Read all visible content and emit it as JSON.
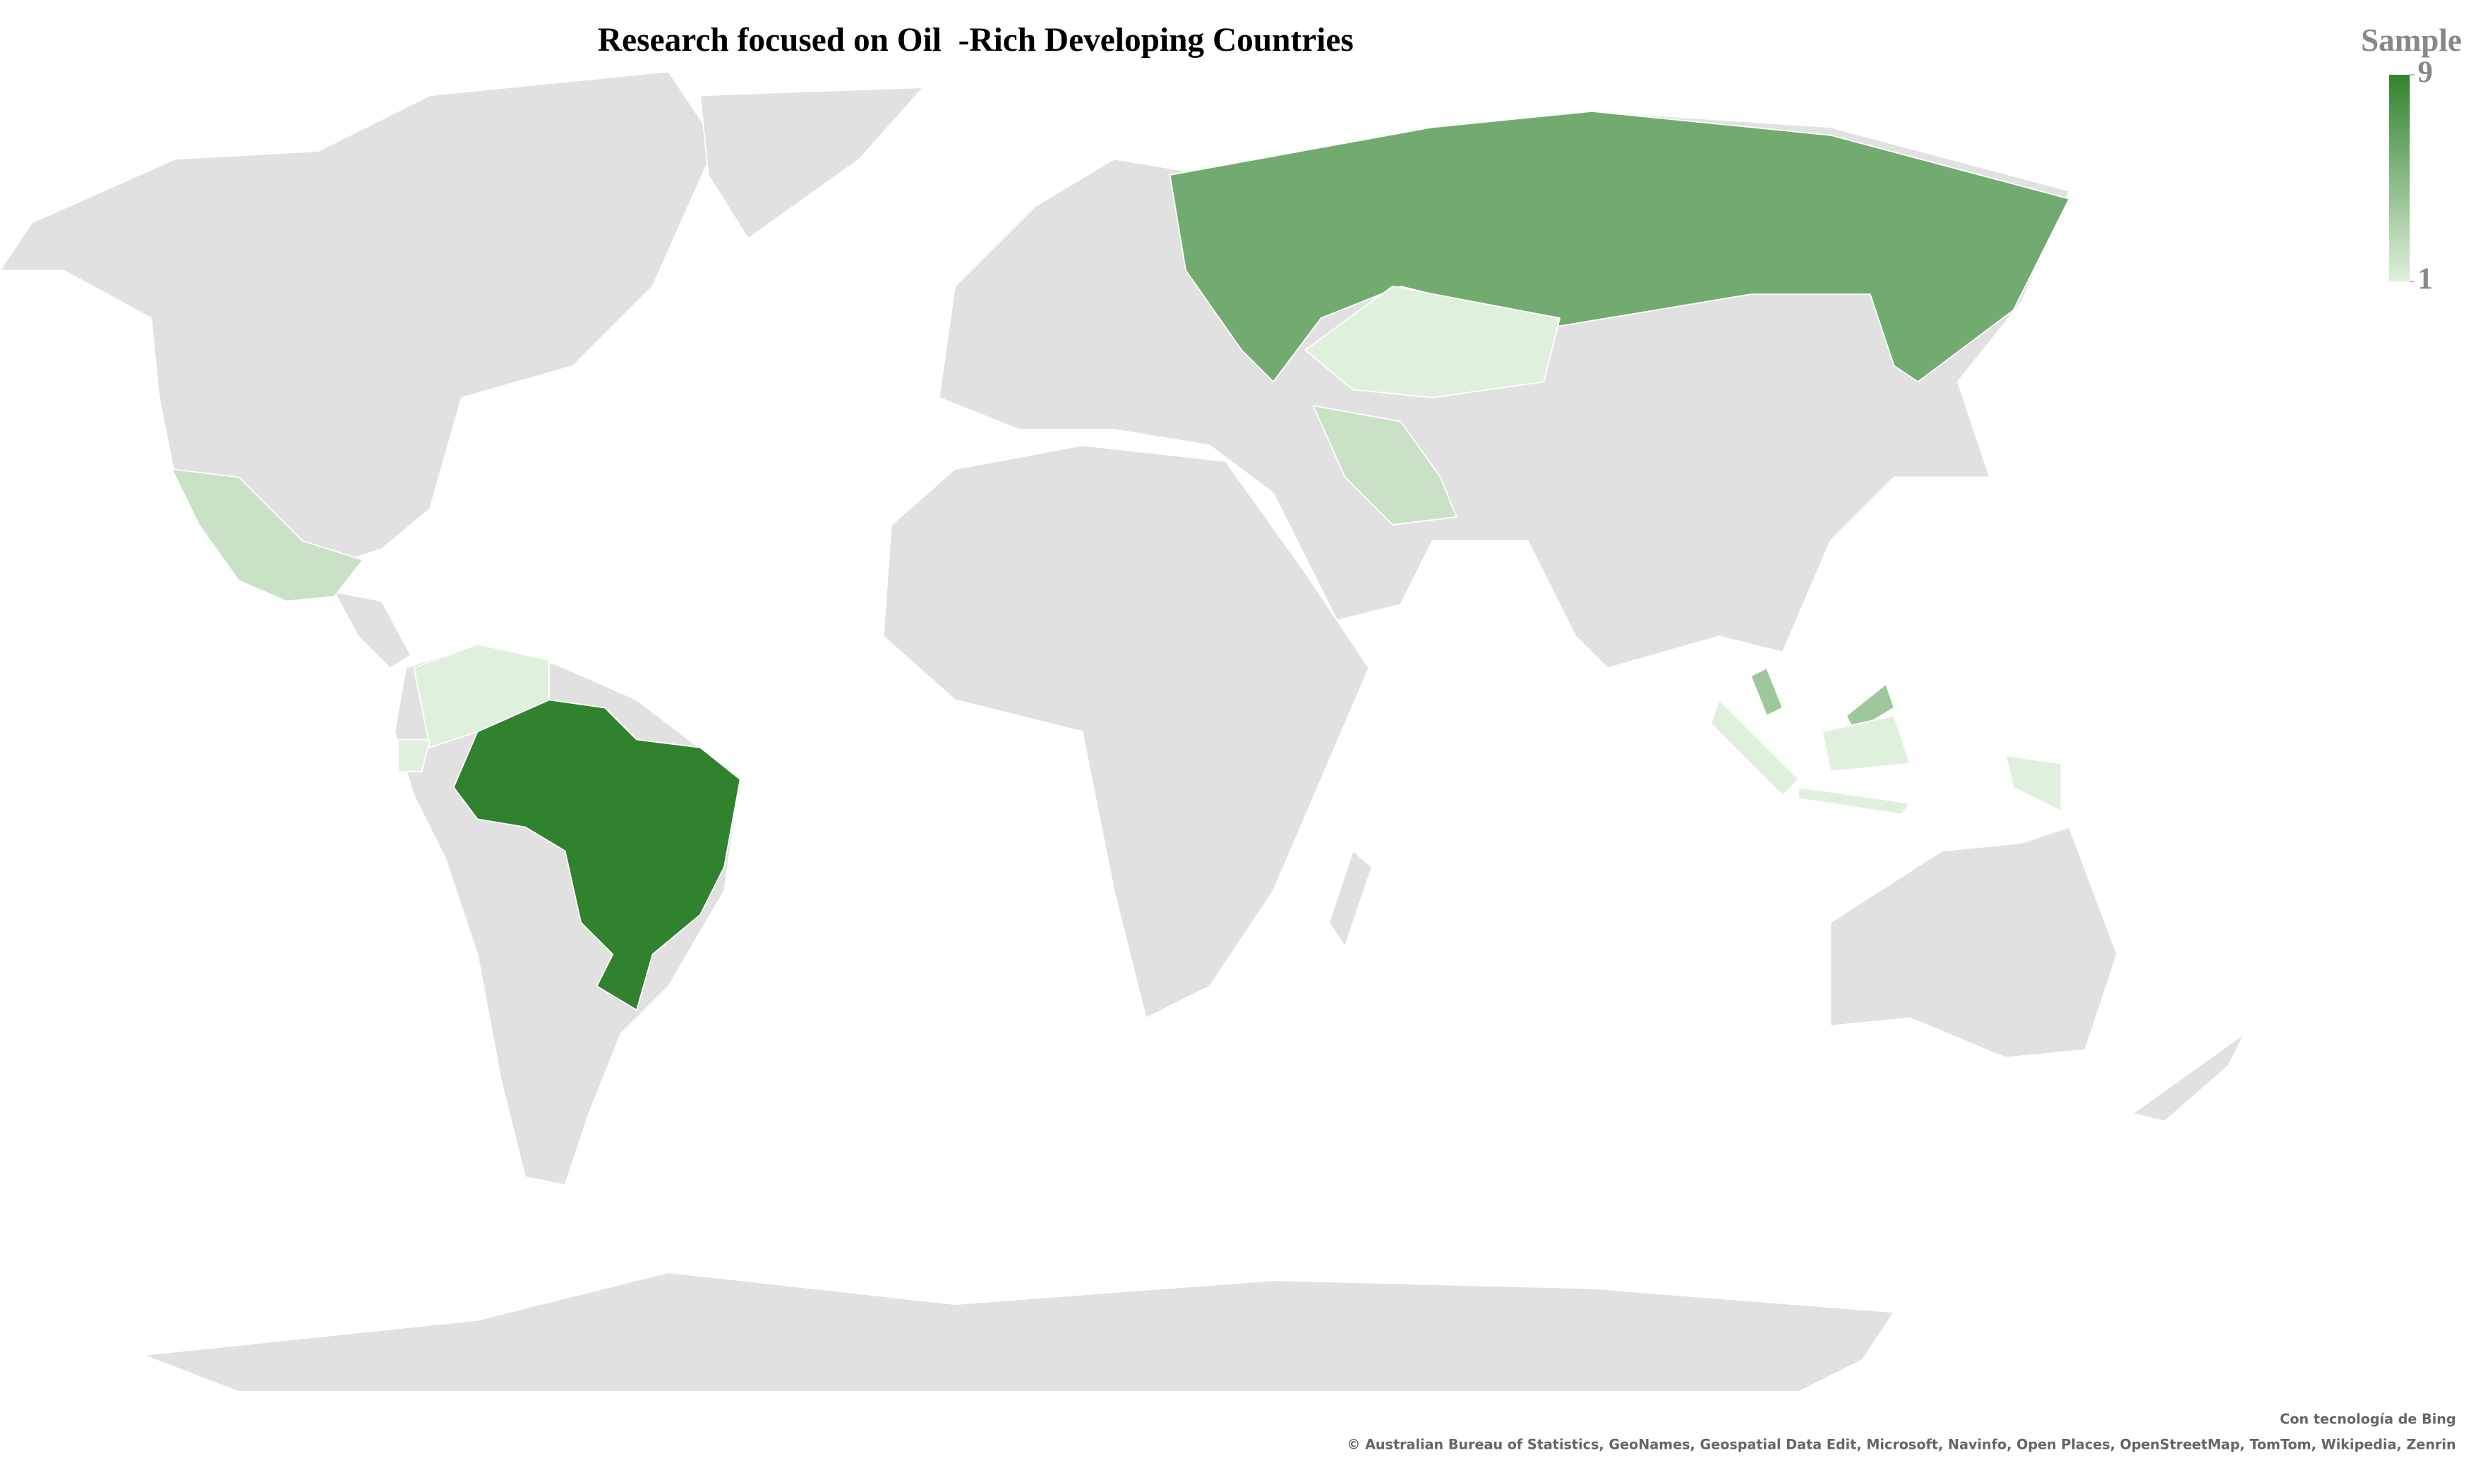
{
  "chart_data": {
    "type": "choropleth",
    "title": "Research focused on Oil  -Rich Developing Countries",
    "legend_title": "Sample",
    "values": [
      9,
      6,
      1,
      2,
      2,
      1,
      1,
      4,
      1
    ],
    "colorlim": [
      1,
      9
    ],
    "legend_ticks": [
      1,
      9
    ],
    "color_low": "#dff0dc",
    "color_high": "#31822e",
    "no_data_color": "#e1e1e1",
    "credit": "Con tecnología de Bing",
    "attribution": "© Australian Bureau of Statistics, GeoNames, Geospatial Data Edit, Microsoft, Navinfo, Open Places, OpenStreetMap, TomTom, Wikipedia, Zenrin"
  }
}
